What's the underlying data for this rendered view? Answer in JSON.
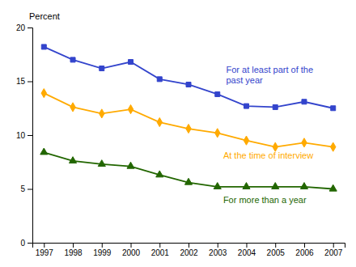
{
  "chart_data": {
    "type": "line",
    "ylabel": "Percent",
    "x": [
      1997,
      1998,
      1999,
      2000,
      2001,
      2002,
      2003,
      2004,
      2005,
      2006,
      2007
    ],
    "series": [
      {
        "color": "#3344cc",
        "marker": "square",
        "values": [
          18.2,
          17.0,
          16.2,
          16.8,
          15.2,
          14.7,
          13.8,
          12.7,
          12.6,
          13.1,
          12.5
        ]
      },
      {
        "color": "#ffaa00",
        "marker": "diamond",
        "values": [
          13.9,
          12.6,
          12.0,
          12.4,
          11.2,
          10.6,
          10.2,
          9.5,
          8.9,
          9.3,
          8.9
        ]
      },
      {
        "color": "#226600",
        "marker": "triangle",
        "values": [
          8.4,
          7.6,
          7.3,
          7.1,
          6.3,
          5.6,
          5.2,
          5.2,
          5.2,
          5.2,
          5.0
        ]
      }
    ],
    "annotations": [
      {
        "text": "For at least part of the",
        "x": 2003.3,
        "y": 15.8,
        "color": "#3344cc"
      },
      {
        "text": "past year",
        "x": 2003.3,
        "y": 14.8,
        "color": "#3344cc"
      },
      {
        "text": "At the time of interview",
        "x": 2003.2,
        "y": 7.8,
        "color": "#ffaa00"
      },
      {
        "text": "For more than a year",
        "x": 2003.2,
        "y": 3.7,
        "color": "#226600"
      }
    ],
    "xlim": [
      1996.6,
      2007.4
    ],
    "xticks": [
      1997,
      1998,
      1999,
      2000,
      2001,
      2002,
      2003,
      2004,
      2005,
      2006,
      2007
    ],
    "ylim": [
      0,
      20
    ],
    "yticks": [
      0,
      5,
      10,
      15,
      20
    ],
    "grid": false
  }
}
